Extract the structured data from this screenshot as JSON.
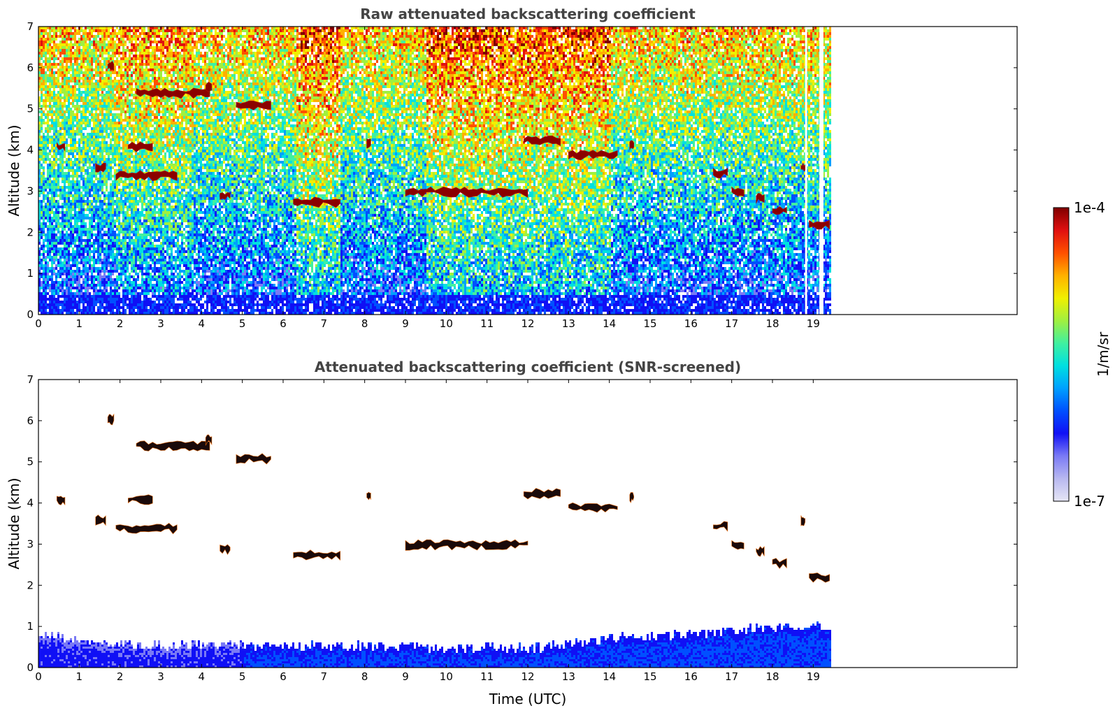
{
  "chart_data": [
    {
      "type": "heatmap",
      "title": "Raw attenuated backscattering coefficient",
      "xlabel": "",
      "ylabel": "Altitude (km)",
      "xlim": [
        0,
        24
      ],
      "ylim": [
        0,
        7
      ],
      "x_ticks": [
        "0",
        "1",
        "2",
        "3",
        "4",
        "5",
        "6",
        "7",
        "8",
        "9",
        "10",
        "11",
        "12",
        "13",
        "14",
        "15",
        "16",
        "17",
        "18",
        "19"
      ],
      "y_ticks": [
        "0",
        "1",
        "2",
        "3",
        "4",
        "5",
        "6",
        "7"
      ],
      "data_extent_hours": [
        0,
        19.4
      ],
      "gaps_hours": [
        [
          18.8,
          18.85
        ],
        [
          19.15,
          19.25
        ]
      ],
      "cloud_layers": [
        {
          "t_start": 0.45,
          "t_end": 0.65,
          "alt_km": 4.1
        },
        {
          "t_start": 1.4,
          "t_end": 1.65,
          "alt_km": 3.6
        },
        {
          "t_start": 1.9,
          "t_end": 3.4,
          "alt_km": 3.4
        },
        {
          "t_start": 2.2,
          "t_end": 2.8,
          "alt_km": 4.1
        },
        {
          "t_start": 1.7,
          "t_end": 1.85,
          "alt_km": 6.05
        },
        {
          "t_start": 2.4,
          "t_end": 4.2,
          "alt_km": 5.4
        },
        {
          "t_start": 4.1,
          "t_end": 4.25,
          "alt_km": 5.55
        },
        {
          "t_start": 4.45,
          "t_end": 4.7,
          "alt_km": 2.9
        },
        {
          "t_start": 4.85,
          "t_end": 5.7,
          "alt_km": 5.1
        },
        {
          "t_start": 6.25,
          "t_end": 7.4,
          "alt_km": 2.75
        },
        {
          "t_start": 8.05,
          "t_end": 8.15,
          "alt_km": 4.2
        },
        {
          "t_start": 9.0,
          "t_end": 12.0,
          "alt_km": 3.0
        },
        {
          "t_start": 11.9,
          "t_end": 12.8,
          "alt_km": 4.25
        },
        {
          "t_start": 13.0,
          "t_end": 14.2,
          "alt_km": 3.9
        },
        {
          "t_start": 14.5,
          "t_end": 14.6,
          "alt_km": 4.15
        },
        {
          "t_start": 16.55,
          "t_end": 16.9,
          "alt_km": 3.45
        },
        {
          "t_start": 17.0,
          "t_end": 17.3,
          "alt_km": 3.0
        },
        {
          "t_start": 17.6,
          "t_end": 17.8,
          "alt_km": 2.85
        },
        {
          "t_start": 18.0,
          "t_end": 18.35,
          "alt_km": 2.55
        },
        {
          "t_start": 18.7,
          "t_end": 18.8,
          "alt_km": 3.6
        },
        {
          "t_start": 18.9,
          "t_end": 19.4,
          "alt_km": 2.2
        }
      ]
    },
    {
      "type": "heatmap",
      "title": "Attenuated backscattering coefficient (SNR-screened)",
      "xlabel": "Time (UTC)",
      "ylabel": "Altitude (km)",
      "xlim": [
        0,
        24
      ],
      "ylim": [
        0,
        7
      ],
      "x_ticks": [
        "0",
        "1",
        "2",
        "3",
        "4",
        "5",
        "6",
        "7",
        "8",
        "9",
        "10",
        "11",
        "12",
        "13",
        "14",
        "15",
        "16",
        "17",
        "18",
        "19"
      ],
      "y_ticks": [
        "0",
        "1",
        "2",
        "3",
        "4",
        "5",
        "6",
        "7"
      ],
      "data_extent_hours": [
        0,
        19.4
      ],
      "boundary_layer_top_km": [
        {
          "t": 0,
          "alt": 0.85
        },
        {
          "t": 1,
          "alt": 0.7
        },
        {
          "t": 2,
          "alt": 0.6
        },
        {
          "t": 4,
          "alt": 0.55
        },
        {
          "t": 6,
          "alt": 0.55
        },
        {
          "t": 8,
          "alt": 0.55
        },
        {
          "t": 10,
          "alt": 0.5
        },
        {
          "t": 12,
          "alt": 0.5
        },
        {
          "t": 13,
          "alt": 0.6
        },
        {
          "t": 14,
          "alt": 0.75
        },
        {
          "t": 16,
          "alt": 0.85
        },
        {
          "t": 18,
          "alt": 1.0
        },
        {
          "t": 19.4,
          "alt": 1.05
        }
      ]
    }
  ],
  "colorbar": {
    "label": "1/m/sr",
    "min_label": "1e-7",
    "max_label": "1e-4",
    "scale": "log",
    "colors": [
      "#e6e6f5",
      "#b8b8f0",
      "#7a7af5",
      "#1010f5",
      "#0050ff",
      "#00a0ff",
      "#00e0e0",
      "#40f0a0",
      "#a0f040",
      "#f0f000",
      "#ffb000",
      "#ff5000",
      "#e01010",
      "#800000"
    ]
  }
}
